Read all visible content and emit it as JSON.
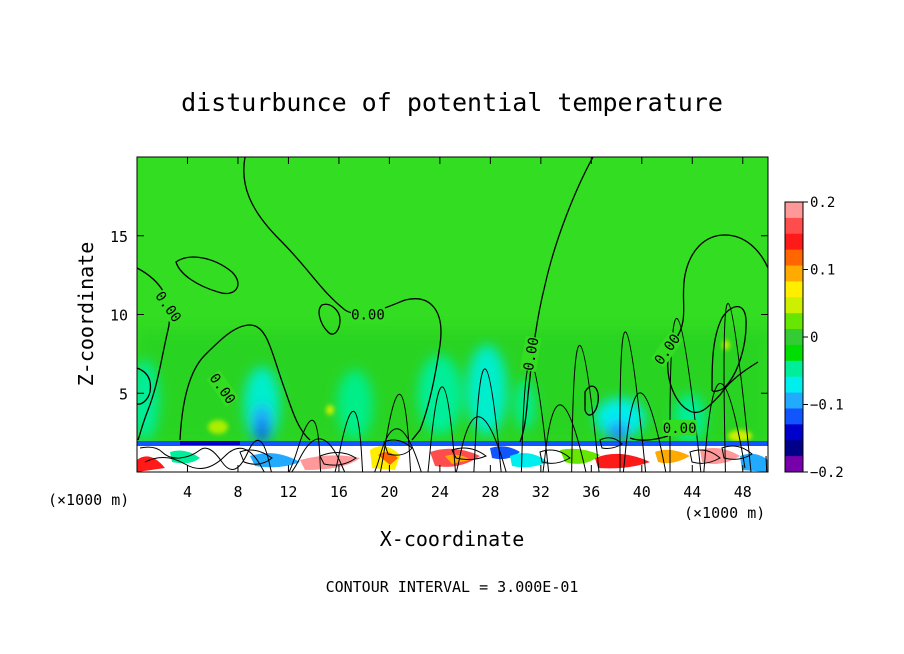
{
  "chart_data": {
    "type": "heatmap",
    "title": "disturbunce of potential temperature",
    "xlabel": "X-coordinate",
    "ylabel": "Z-coordinate",
    "x_unit_left": "(×1000 m)",
    "x_unit_right": "(×1000 m)",
    "footer": "CONTOUR INTERVAL = 3.000E-01",
    "x_ticks": [
      "4",
      "8",
      "12",
      "16",
      "20",
      "24",
      "28",
      "32",
      "36",
      "40",
      "44",
      "48"
    ],
    "y_ticks": [
      "5",
      "10",
      "15"
    ],
    "xlim": [
      0,
      50
    ],
    "ylim": [
      0,
      20
    ],
    "colorbar": {
      "ticks": [
        "0.2",
        "0.1",
        "0",
        "−0.1",
        "−0.2"
      ],
      "range": [
        -0.2,
        0.2
      ],
      "colors": [
        "#ff9999",
        "#ff4d4d",
        "#ff1a1a",
        "#ff6600",
        "#ffaa00",
        "#ffee00",
        "#ccf000",
        "#66e600",
        "#33cc33",
        "#00dd00",
        "#00ee99",
        "#00eeee",
        "#22aaff",
        "#1155ff",
        "#0000cc",
        "#000088",
        "#7700aa"
      ]
    },
    "contour_labels": [
      {
        "text": "0.00",
        "x": 2.5,
        "z": 10.5,
        "angle": 55
      },
      {
        "text": "0.00",
        "x": 6.8,
        "z": 5.3,
        "angle": 55
      },
      {
        "text": "0.00",
        "x": 18.3,
        "z": 10.0,
        "angle": 0
      },
      {
        "text": "0.00",
        "x": 31.2,
        "z": 7.5,
        "angle": -80
      },
      {
        "text": "0.00",
        "x": 42.0,
        "z": 7.8,
        "angle": -55
      },
      {
        "text": "0.00",
        "x": 43.0,
        "z": 2.8,
        "angle": 0
      }
    ]
  }
}
